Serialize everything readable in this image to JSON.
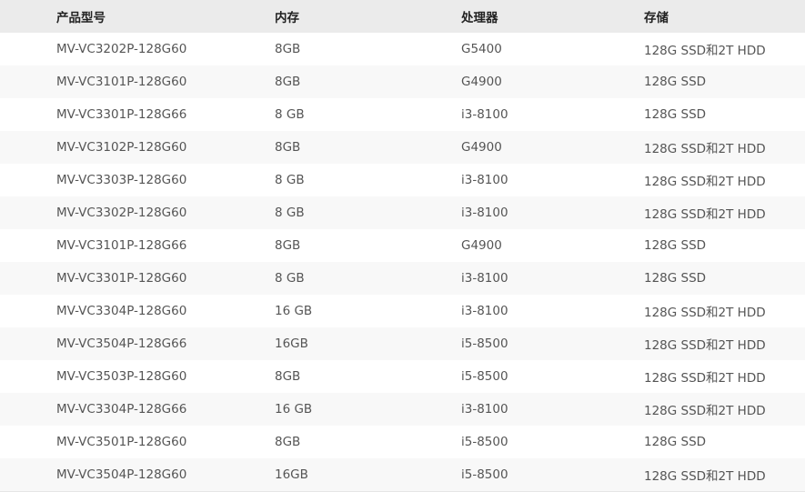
{
  "table": {
    "headers": [
      "产品型号",
      "内存",
      "处理器",
      "存储"
    ],
    "rows": [
      [
        "MV-VC3202P-128G60",
        "8GB",
        "G5400",
        "128G SSD和2T HDD"
      ],
      [
        "MV-VC3101P-128G60",
        "8GB",
        "G4900",
        "128G SSD"
      ],
      [
        "MV-VC3301P-128G66",
        "8 GB",
        "i3-8100",
        "128G SSD"
      ],
      [
        "MV-VC3102P-128G60",
        "8GB",
        "G4900",
        "128G SSD和2T HDD"
      ],
      [
        "MV-VC3303P-128G60",
        "8 GB",
        "i3-8100",
        "128G SSD和2T HDD"
      ],
      [
        "MV-VC3302P-128G60",
        "8 GB",
        "i3-8100",
        "128G SSD和2T HDD"
      ],
      [
        "MV-VC3101P-128G66",
        "8GB",
        "G4900",
        "128G SSD"
      ],
      [
        "MV-VC3301P-128G60",
        "8 GB",
        "i3-8100",
        "128G SSD"
      ],
      [
        "MV-VC3304P-128G60",
        "16 GB",
        "i3-8100",
        "128G SSD和2T HDD"
      ],
      [
        "MV-VC3504P-128G66",
        "16GB",
        "i5-8500",
        "128G SSD和2T HDD"
      ],
      [
        "MV-VC3503P-128G60",
        "8GB",
        "i5-8500",
        "128G SSD和2T HDD"
      ],
      [
        "MV-VC3304P-128G66",
        "16 GB",
        "i3-8100",
        "128G SSD和2T HDD"
      ],
      [
        "MV-VC3501P-128G60",
        "8GB",
        "i5-8500",
        "128G SSD"
      ],
      [
        "MV-VC3504P-128G60",
        "16GB",
        "i5-8500",
        "128G SSD和2T HDD"
      ]
    ]
  }
}
